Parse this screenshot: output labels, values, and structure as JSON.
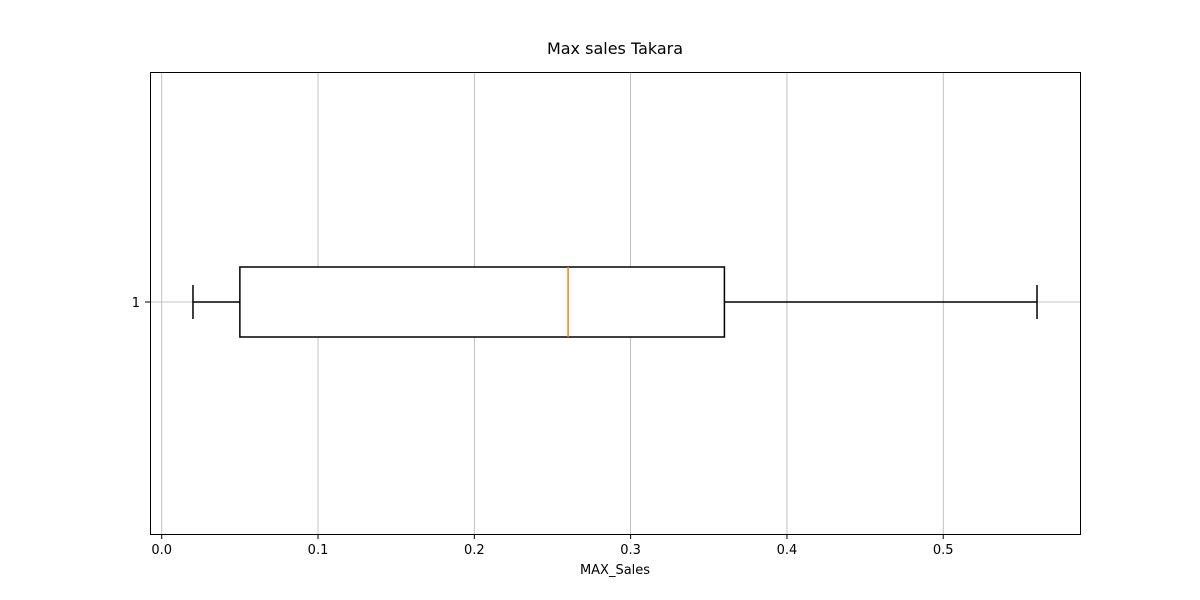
{
  "chart_data": {
    "type": "box",
    "orientation": "horizontal",
    "title": "Max sales Takara",
    "xlabel": "MAX_Sales",
    "ylabel": "",
    "xlim": [
      -0.0075,
      0.5875
    ],
    "xticks": [
      0.0,
      0.1,
      0.2,
      0.3,
      0.4,
      0.5
    ],
    "xtick_labels": [
      "0.0",
      "0.1",
      "0.2",
      "0.3",
      "0.4",
      "0.5"
    ],
    "ytick_labels": [
      "1"
    ],
    "grid": true,
    "series": [
      {
        "position": 1,
        "whisker_low": 0.02,
        "q1": 0.05,
        "median": 0.26,
        "q3": 0.36,
        "whisker_high": 0.56
      }
    ],
    "colors": {
      "box": "#000000",
      "median": "#ff7f0e",
      "grid": "#b0b0b0",
      "frame": "#000000"
    }
  }
}
